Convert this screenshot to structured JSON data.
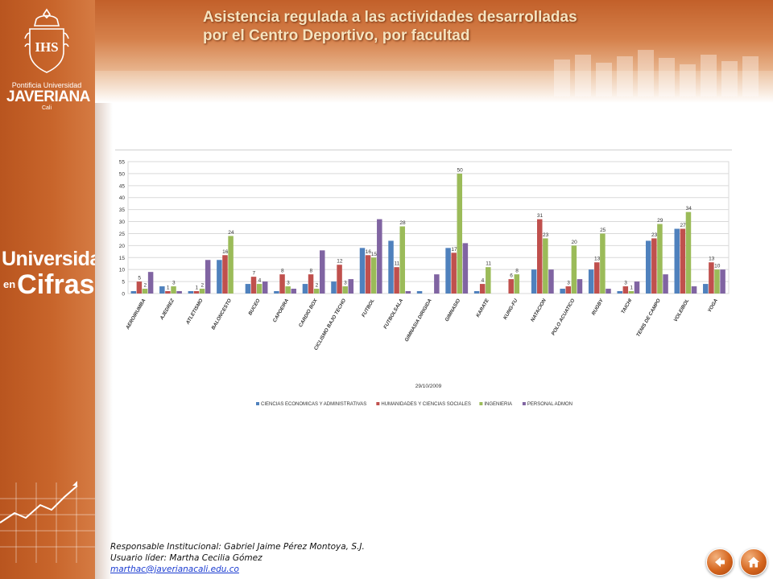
{
  "logo": {
    "crest_text": "IHS",
    "subtitle": "Pontificia Universidad",
    "name": "JAVERIANA",
    "city": "Cali"
  },
  "brand": {
    "line1": "Universidad",
    "prefix": "en",
    "line2": "Cifras"
  },
  "header": {
    "title_line1": "Asistencia regulada  a las actividades desarrolladas",
    "title_line2": "por el Centro Deportivo, por facultad"
  },
  "chart_data": {
    "type": "bar",
    "xlabel": "29/10/2009",
    "ylim": [
      0,
      55
    ],
    "yticks": [
      0,
      5,
      10,
      15,
      20,
      25,
      30,
      35,
      40,
      45,
      50,
      55
    ],
    "grid": true,
    "legend_position": "bottom",
    "categories": [
      "AEROIRUMBA",
      "AJEDREZ",
      "ATLETISMO",
      "BALONCESTO",
      "BUCEO",
      "CAPOEIRA",
      "CARDIO BOX",
      "CICLISMO BAJO TECHO",
      "FUTBOL",
      "FUTBOLSALA",
      "GIMNASIA DIRIGIDA",
      "GIMNASIO",
      "KARATE",
      "KUNG-FU",
      "NATACION",
      "POLO ACUATICO",
      "RUGBY",
      "TAICHI",
      "TENIS DE CAMPO",
      "VOLEIBOL",
      "YOGA"
    ],
    "series": [
      {
        "name": "CIENCIAS ECONOMICAS Y ADMINISTRATIVAS",
        "color": "#4f81bd",
        "values": [
          1,
          3,
          1,
          14,
          4,
          1,
          4,
          5,
          19,
          22,
          1,
          19,
          1,
          0,
          10,
          2,
          10,
          1,
          22,
          27,
          4
        ],
        "labels": [
          null,
          null,
          null,
          null,
          null,
          null,
          null,
          null,
          null,
          null,
          null,
          null,
          null,
          null,
          null,
          null,
          null,
          null,
          null,
          null,
          null
        ]
      },
      {
        "name": "HUMANIDADES Y CIENCIAS SOCIALES",
        "color": "#c0504d",
        "values": [
          5,
          1,
          1,
          16,
          7,
          8,
          8,
          12,
          16,
          11,
          0,
          17,
          4,
          6,
          31,
          3,
          13,
          3,
          23,
          27,
          13
        ],
        "labels": [
          5,
          1,
          1,
          16,
          7,
          8,
          8,
          12,
          16,
          11,
          null,
          17,
          4,
          6,
          31,
          3,
          13,
          3,
          23,
          27,
          13
        ]
      },
      {
        "name": "INGENIERIA",
        "color": "#9bbb59",
        "values": [
          2,
          3,
          2,
          24,
          4,
          3,
          2,
          3,
          15,
          28,
          0,
          50,
          11,
          8,
          23,
          20,
          25,
          1,
          29,
          34,
          10
        ],
        "labels": [
          2,
          3,
          2,
          24,
          4,
          3,
          2,
          3,
          15,
          28,
          null,
          50,
          11,
          8,
          23,
          20,
          25,
          1,
          29,
          34,
          10
        ]
      },
      {
        "name": "PERSONAL ADMON",
        "color": "#8064a2",
        "values": [
          9,
          1,
          14,
          0,
          5,
          2,
          18,
          6,
          31,
          1,
          8,
          21,
          0,
          0,
          10,
          6,
          2,
          5,
          8,
          3,
          10
        ],
        "labels": [
          null,
          null,
          null,
          null,
          null,
          null,
          null,
          null,
          null,
          null,
          null,
          null,
          null,
          null,
          null,
          null,
          null,
          null,
          null,
          null,
          null
        ]
      }
    ]
  },
  "footer": {
    "responsible": "Responsable Institucional: Gabriel Jaime Pérez Montoya, S.J.",
    "leader": "Usuario líder: Martha Cecilia Gómez",
    "email": "marthac@javerianacali.edu.co"
  },
  "colors": {
    "sidebar": "#c8652b",
    "title": "#f6e4c0",
    "link": "#1a3bd1"
  },
  "nav": {
    "back_icon": "arrow-left-icon",
    "home_icon": "home-icon"
  }
}
